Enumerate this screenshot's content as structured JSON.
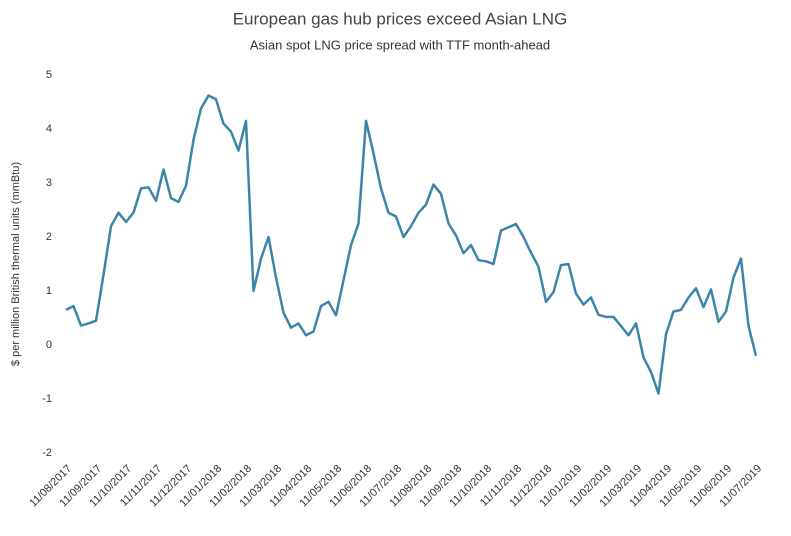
{
  "chart_data": {
    "type": "line",
    "title": "European gas hub prices exceed Asian LNG",
    "subtitle": "Asian spot LNG price spread with TTF month-ahead",
    "y_label": "$ per million British thermal units (mmBtu)",
    "categories": [
      "11/08/2017",
      null,
      null,
      null,
      "11/09/2017",
      null,
      null,
      null,
      "11/10/2017",
      null,
      null,
      null,
      "11/11/2017",
      null,
      null,
      null,
      "11/12/2017",
      null,
      null,
      null,
      "11/01/2018",
      null,
      null,
      null,
      "11/02/2018",
      null,
      null,
      null,
      "11/03/2018",
      null,
      null,
      null,
      "11/04/2018",
      null,
      null,
      null,
      "11/05/2018",
      null,
      null,
      null,
      "11/06/2018",
      null,
      null,
      null,
      "11/07/2018",
      null,
      null,
      null,
      "11/08/2018",
      null,
      null,
      null,
      "11/09/2018",
      null,
      null,
      null,
      "11/10/2018",
      null,
      null,
      null,
      "11/11/2018",
      null,
      null,
      null,
      "11/12/2018",
      null,
      null,
      null,
      "11/01/2019",
      null,
      null,
      null,
      "11/02/2019",
      null,
      null,
      null,
      "11/03/2019",
      null,
      null,
      null,
      "11/04/2019",
      null,
      null,
      null,
      "11/05/2019",
      null,
      null,
      null,
      "11/06/2019",
      null,
      null,
      null,
      "11/07/2019"
    ],
    "series": [
      {
        "name": "Spread",
        "color": "#3d85a8",
        "values": [
          0.65,
          0.72,
          0.36,
          0.4,
          0.45,
          1.3,
          2.2,
          2.45,
          2.28,
          2.45,
          2.9,
          2.92,
          2.67,
          3.25,
          2.72,
          2.65,
          2.95,
          3.8,
          4.38,
          4.62,
          4.55,
          4.1,
          3.95,
          3.6,
          4.15,
          1.0,
          1.6,
          2.0,
          1.25,
          0.6,
          0.32,
          0.4,
          0.18,
          0.25,
          0.72,
          0.8,
          0.55,
          1.2,
          1.85,
          2.25,
          4.15,
          3.55,
          2.9,
          2.45,
          2.38,
          2.0,
          2.2,
          2.45,
          2.6,
          2.97,
          2.8,
          2.25,
          2.03,
          1.7,
          1.85,
          1.57,
          1.55,
          1.5,
          2.12,
          2.18,
          2.24,
          2.0,
          1.71,
          1.45,
          0.8,
          0.98,
          1.48,
          1.5,
          0.95,
          0.75,
          0.88,
          0.56,
          0.52,
          0.52,
          0.35,
          0.18,
          0.4,
          -0.23,
          -0.5,
          -0.9,
          0.2,
          0.62,
          0.65,
          0.88,
          1.05,
          0.7,
          1.03,
          0.43,
          0.62,
          1.25,
          1.6,
          0.35,
          -0.2
        ]
      }
    ],
    "ylim": [
      -2,
      5
    ],
    "yticks": [
      -2,
      -1,
      0,
      1,
      2,
      3,
      4,
      5
    ],
    "grid": false
  }
}
